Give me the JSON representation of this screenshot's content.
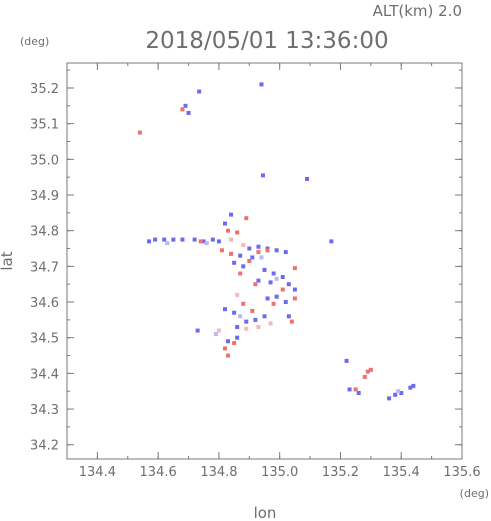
{
  "header": {
    "altitude_label": "ALT(km) 2.0",
    "timestamp": "2018/05/01 13:36:00",
    "y_unit": "(deg)",
    "x_unit": "(deg)"
  },
  "chart_data": {
    "type": "scatter",
    "title": "2018/05/01 13:36:00",
    "xlabel": "lon",
    "ylabel": "lat",
    "xlim": [
      134.3,
      135.6
    ],
    "ylim": [
      34.16,
      35.27
    ],
    "xticks": [
      134.4,
      134.6,
      134.8,
      135.0,
      135.2,
      135.4,
      135.6
    ],
    "xtick_labels": [
      "134.4",
      "134.6",
      "134.8",
      "135.0",
      "135.2",
      "135.4",
      "135.6"
    ],
    "yticks": [
      34.2,
      34.3,
      34.4,
      34.5,
      34.6,
      34.7,
      34.8,
      34.9,
      35.0,
      35.1,
      35.2
    ],
    "ytick_labels": [
      "34.2",
      "34.3",
      "34.4",
      "34.5",
      "34.6",
      "34.7",
      "34.8",
      "34.9",
      "35.0",
      "35.1",
      "35.2"
    ],
    "grid": false,
    "colors": {
      "positive": "#f07070",
      "negative": "#6b6bf0",
      "pale_positive": "#f6b8b8",
      "pale_negative": "#b8b8f4"
    },
    "series": [
      {
        "color": "negative",
        "points": [
          [
            134.735,
            35.19
          ],
          [
            134.94,
            35.21
          ],
          [
            134.69,
            35.15
          ],
          [
            134.7,
            35.13
          ],
          [
            134.945,
            34.955
          ],
          [
            135.09,
            34.945
          ],
          [
            134.84,
            34.845
          ],
          [
            134.82,
            34.82
          ],
          [
            134.62,
            34.775
          ],
          [
            134.65,
            34.775
          ],
          [
            134.68,
            34.775
          ],
          [
            134.72,
            34.775
          ],
          [
            134.75,
            34.77
          ],
          [
            134.78,
            34.775
          ],
          [
            134.8,
            34.77
          ],
          [
            134.57,
            34.77
          ],
          [
            134.59,
            34.775
          ],
          [
            134.9,
            34.75
          ],
          [
            134.93,
            34.755
          ],
          [
            134.96,
            34.75
          ],
          [
            134.99,
            34.745
          ],
          [
            135.02,
            34.74
          ],
          [
            134.87,
            34.73
          ],
          [
            134.91,
            34.725
          ],
          [
            134.85,
            34.71
          ],
          [
            134.88,
            34.7
          ],
          [
            134.95,
            34.69
          ],
          [
            134.98,
            34.68
          ],
          [
            135.01,
            34.67
          ],
          [
            134.93,
            34.66
          ],
          [
            134.97,
            34.655
          ],
          [
            135.03,
            34.65
          ],
          [
            135.05,
            34.635
          ],
          [
            134.96,
            34.61
          ],
          [
            134.99,
            34.615
          ],
          [
            135.02,
            34.6
          ],
          [
            134.82,
            34.58
          ],
          [
            134.85,
            34.57
          ],
          [
            134.73,
            34.52
          ],
          [
            134.86,
            34.53
          ],
          [
            134.89,
            34.545
          ],
          [
            134.92,
            34.55
          ],
          [
            134.95,
            34.56
          ],
          [
            135.03,
            34.56
          ],
          [
            134.83,
            34.49
          ],
          [
            134.86,
            34.5
          ],
          [
            135.17,
            34.77
          ],
          [
            135.23,
            34.355
          ],
          [
            135.26,
            34.345
          ],
          [
            135.36,
            34.33
          ],
          [
            135.38,
            34.34
          ],
          [
            135.4,
            34.345
          ],
          [
            135.43,
            34.36
          ],
          [
            135.44,
            34.365
          ],
          [
            135.22,
            34.435
          ]
        ]
      },
      {
        "color": "positive",
        "points": [
          [
            134.54,
            35.075
          ],
          [
            134.68,
            35.14
          ],
          [
            134.83,
            34.8
          ],
          [
            134.86,
            34.795
          ],
          [
            134.89,
            34.835
          ],
          [
            134.74,
            34.77
          ],
          [
            134.81,
            34.745
          ],
          [
            134.84,
            34.735
          ],
          [
            134.93,
            34.74
          ],
          [
            134.96,
            34.745
          ],
          [
            134.9,
            34.715
          ],
          [
            135.05,
            34.695
          ],
          [
            134.87,
            34.68
          ],
          [
            134.92,
            34.65
          ],
          [
            135.01,
            34.635
          ],
          [
            134.98,
            34.595
          ],
          [
            135.05,
            34.61
          ],
          [
            134.88,
            34.595
          ],
          [
            134.91,
            34.575
          ],
          [
            134.85,
            34.485
          ],
          [
            134.82,
            34.47
          ],
          [
            134.83,
            34.45
          ],
          [
            135.04,
            34.545
          ],
          [
            135.29,
            34.405
          ],
          [
            135.3,
            34.41
          ],
          [
            135.28,
            34.39
          ],
          [
            135.25,
            34.355
          ]
        ]
      },
      {
        "color": "pale_positive",
        "points": [
          [
            134.84,
            34.775
          ],
          [
            134.88,
            34.76
          ],
          [
            134.86,
            34.62
          ],
          [
            134.89,
            34.525
          ],
          [
            134.93,
            34.53
          ],
          [
            134.97,
            34.54
          ],
          [
            134.8,
            34.52
          ]
        ]
      },
      {
        "color": "pale_negative",
        "points": [
          [
            134.63,
            34.765
          ],
          [
            134.76,
            34.765
          ],
          [
            134.94,
            34.725
          ],
          [
            134.99,
            34.665
          ],
          [
            134.87,
            34.56
          ],
          [
            134.79,
            34.51
          ],
          [
            135.39,
            34.35
          ]
        ]
      }
    ]
  }
}
